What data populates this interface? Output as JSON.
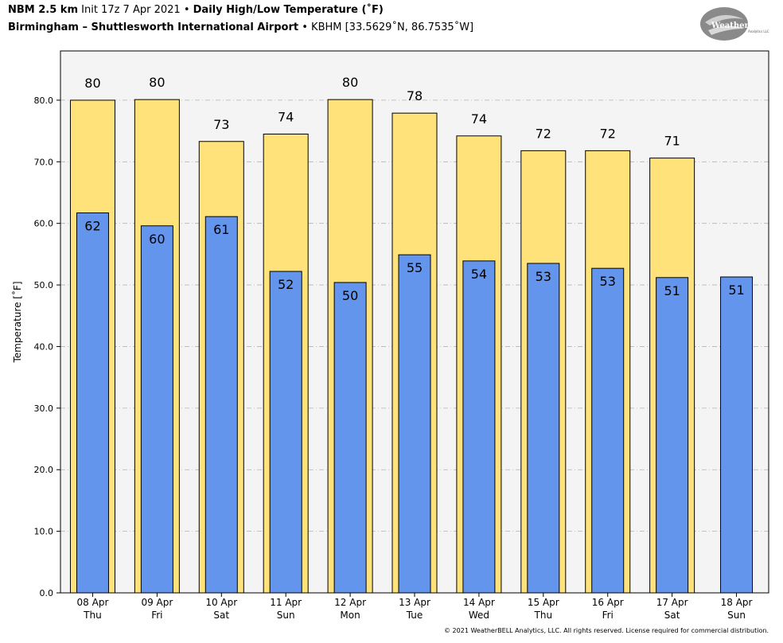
{
  "header": {
    "model": "NBM 2.5 km",
    "init": "Init 17z 7 Apr 2021",
    "bullet": "•",
    "product": "Daily High/Low Temperature (˚F)",
    "location": "Birmingham – Shuttlesworth International Airport",
    "station": "KBHM [33.5629˚N, 86.7535˚W]"
  },
  "logo": {
    "text_main": "WeatherBELL",
    "text_sub": "Analytics LLC"
  },
  "footer": {
    "copyright": "© 2021 WeatherBELL Analytics, LLC. All rights reserved. License required for commercial distribution."
  },
  "colors": {
    "high": "#FFE37A",
    "low": "#6495ED",
    "plot_bg": "#F4F4F4",
    "grid": "#b4b4b4"
  },
  "chart_data": {
    "type": "bar",
    "title": "Daily High/Low Temperature (˚F)",
    "ylabel": "Temperature [˚F]",
    "ylim": [
      0,
      88
    ],
    "yticks": [
      "0.0",
      "10.0",
      "20.0",
      "30.0",
      "40.0",
      "50.0",
      "60.0",
      "70.0",
      "80.0"
    ],
    "grid": true,
    "categories": [
      {
        "date": "08 Apr",
        "day": "Thu"
      },
      {
        "date": "09 Apr",
        "day": "Fri"
      },
      {
        "date": "10 Apr",
        "day": "Sat"
      },
      {
        "date": "11 Apr",
        "day": "Sun"
      },
      {
        "date": "12 Apr",
        "day": "Mon"
      },
      {
        "date": "13 Apr",
        "day": "Tue"
      },
      {
        "date": "14 Apr",
        "day": "Wed"
      },
      {
        "date": "15 Apr",
        "day": "Thu"
      },
      {
        "date": "16 Apr",
        "day": "Fri"
      },
      {
        "date": "17 Apr",
        "day": "Sat"
      },
      {
        "date": "18 Apr",
        "day": "Sun"
      }
    ],
    "series": [
      {
        "name": "High",
        "values": [
          80,
          80.1,
          73.3,
          74.5,
          80.1,
          77.9,
          74.2,
          71.8,
          71.8,
          70.6,
          null
        ],
        "labels": [
          "80",
          "80",
          "73",
          "74",
          "80",
          "78",
          "74",
          "72",
          "72",
          "71",
          null
        ]
      },
      {
        "name": "Low",
        "values": [
          61.7,
          59.6,
          61.1,
          52.2,
          50.4,
          54.9,
          53.9,
          53.5,
          52.7,
          51.2,
          51.3
        ],
        "labels": [
          "62",
          "60",
          "61",
          "52",
          "50",
          "55",
          "54",
          "53",
          "53",
          "51",
          "51"
        ]
      }
    ]
  }
}
